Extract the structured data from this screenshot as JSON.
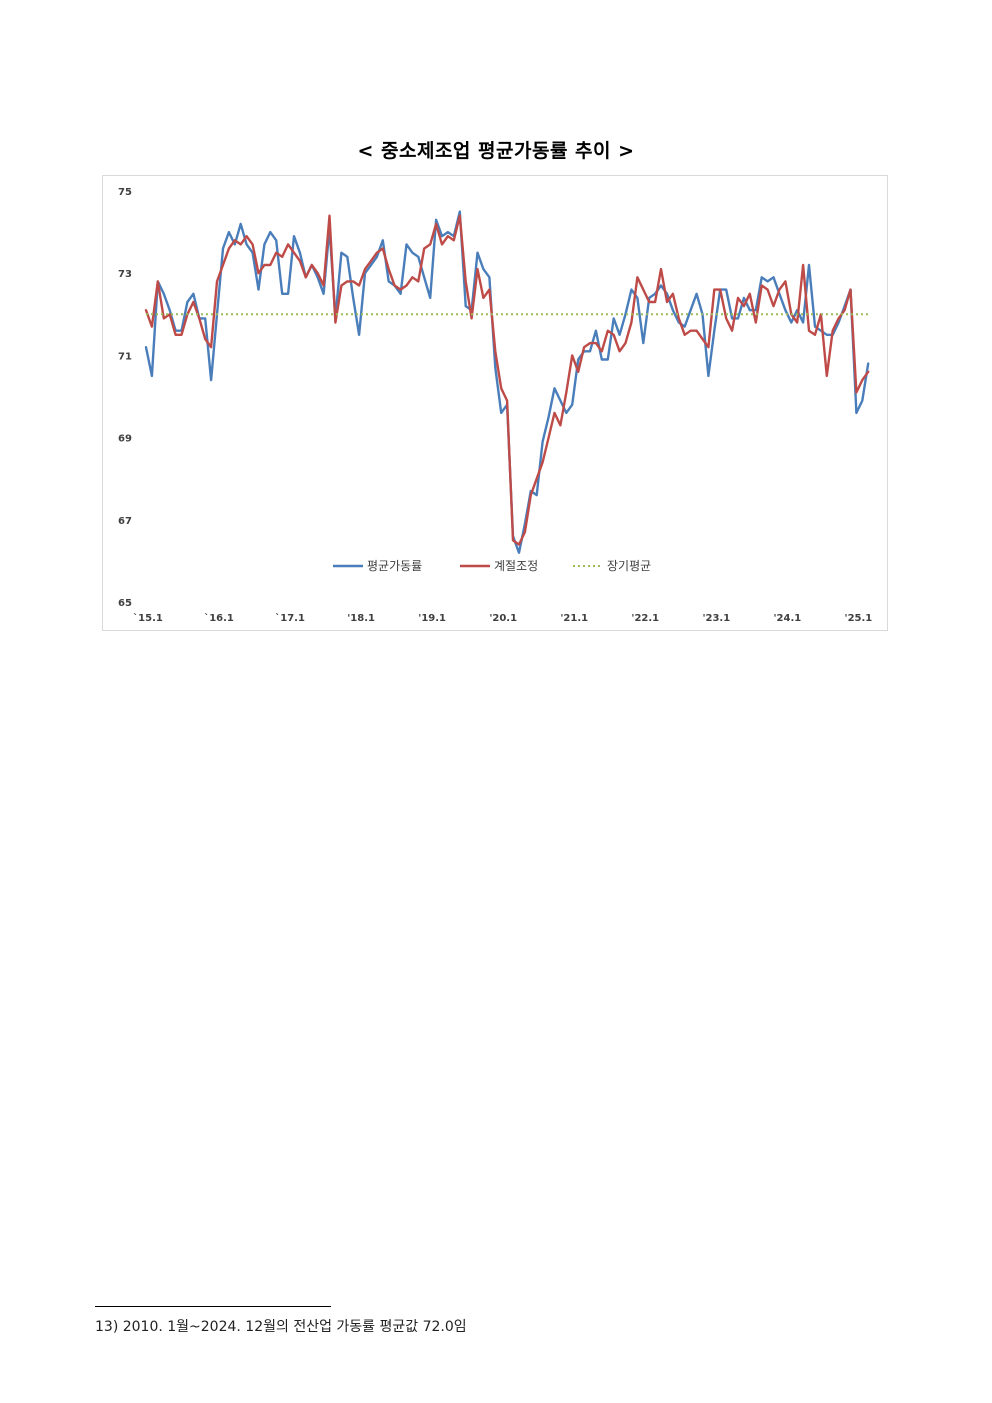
{
  "title": "< 중소제조업 평균가동률 추이 >",
  "footnote": "13) 2010. 1월~2024. 12월의 전산업 가동률 평균값 72.0임",
  "chart_data": {
    "type": "line",
    "title": "< 중소제조업 평균가동률 추이 >",
    "ylim": [
      65,
      75
    ],
    "yticks": [
      "75",
      "73",
      "71",
      "69",
      "67",
      "65"
    ],
    "xtick_labels": [
      "`15.1",
      "`16.1",
      "`17.1",
      "'18.1",
      "'19.1",
      "'20.1",
      "'21.1",
      "'22.1",
      "'23.1",
      "'24.1",
      "'25.1"
    ],
    "x_start": "2015-01",
    "grid": false,
    "legend_position": "bottom-inside",
    "series": [
      {
        "name": "평균가동률",
        "color": "#4a7ebb",
        "style": "solid",
        "values": [
          71.2,
          70.5,
          72.8,
          72.5,
          72.1,
          71.6,
          71.6,
          72.3,
          72.5,
          71.9,
          71.9,
          70.4,
          72.0,
          73.6,
          74.0,
          73.7,
          74.2,
          73.7,
          73.5,
          72.6,
          73.7,
          74.0,
          73.8,
          72.5,
          72.5,
          73.9,
          73.5,
          72.9,
          73.2,
          72.9,
          72.5,
          74.1,
          71.9,
          73.5,
          73.4,
          72.4,
          71.5,
          73.0,
          73.2,
          73.4,
          73.8,
          72.8,
          72.7,
          72.5,
          73.7,
          73.5,
          73.4,
          72.9,
          72.4,
          74.3,
          73.9,
          74.0,
          73.9,
          74.5,
          72.2,
          72.1,
          73.5,
          73.1,
          72.9,
          70.7,
          69.6,
          69.8,
          66.6,
          66.2,
          66.9,
          67.7,
          67.6,
          68.9,
          69.5,
          70.2,
          69.9,
          69.6,
          69.8,
          70.9,
          71.1,
          71.1,
          71.6,
          70.9,
          70.9,
          71.9,
          71.5,
          72.0,
          72.6,
          72.4,
          71.3,
          72.4,
          72.5,
          72.7,
          72.5,
          72.1,
          71.8,
          71.7,
          72.1,
          72.5,
          72.0,
          70.5,
          71.6,
          72.6,
          72.6,
          71.9,
          71.9,
          72.4,
          72.1,
          72.1,
          72.9,
          72.8,
          72.9,
          72.5,
          72.1,
          71.8,
          72.1,
          71.8,
          73.2,
          71.7,
          71.6,
          71.5,
          71.5,
          71.8,
          72.2,
          72.6,
          69.6,
          69.9,
          70.8
        ]
      },
      {
        "name": "계절조정",
        "color": "#be4b48",
        "style": "solid",
        "values": [
          72.1,
          71.7,
          72.8,
          71.9,
          72.0,
          71.5,
          71.5,
          72.0,
          72.3,
          71.9,
          71.4,
          71.2,
          72.8,
          73.2,
          73.6,
          73.8,
          73.7,
          73.9,
          73.7,
          73.0,
          73.2,
          73.2,
          73.5,
          73.4,
          73.7,
          73.5,
          73.3,
          72.9,
          73.2,
          73.0,
          72.7,
          74.4,
          71.8,
          72.7,
          72.8,
          72.8,
          72.7,
          73.1,
          73.3,
          73.5,
          73.6,
          73.1,
          72.7,
          72.6,
          72.7,
          72.9,
          72.8,
          73.6,
          73.7,
          74.2,
          73.7,
          73.9,
          73.8,
          74.4,
          72.8,
          71.9,
          73.1,
          72.4,
          72.6,
          71.1,
          70.2,
          69.9,
          66.5,
          66.4,
          66.7,
          67.6,
          68.0,
          68.4,
          69.0,
          69.6,
          69.3,
          70.1,
          71.0,
          70.6,
          71.2,
          71.3,
          71.3,
          71.1,
          71.6,
          71.5,
          71.1,
          71.3,
          71.8,
          72.9,
          72.6,
          72.3,
          72.3,
          73.1,
          72.3,
          72.5,
          71.9,
          71.5,
          71.6,
          71.6,
          71.4,
          71.2,
          72.6,
          72.6,
          71.9,
          71.6,
          72.4,
          72.2,
          72.5,
          71.8,
          72.7,
          72.6,
          72.2,
          72.6,
          72.8,
          72.0,
          71.8,
          73.2,
          71.6,
          71.5,
          72.0,
          70.5,
          71.6,
          71.9,
          72.1,
          72.6,
          70.1,
          70.4,
          70.6
        ]
      },
      {
        "name": "장기평균",
        "color": "#9bbb59",
        "style": "dotted",
        "constant": 72.0
      }
    ]
  }
}
